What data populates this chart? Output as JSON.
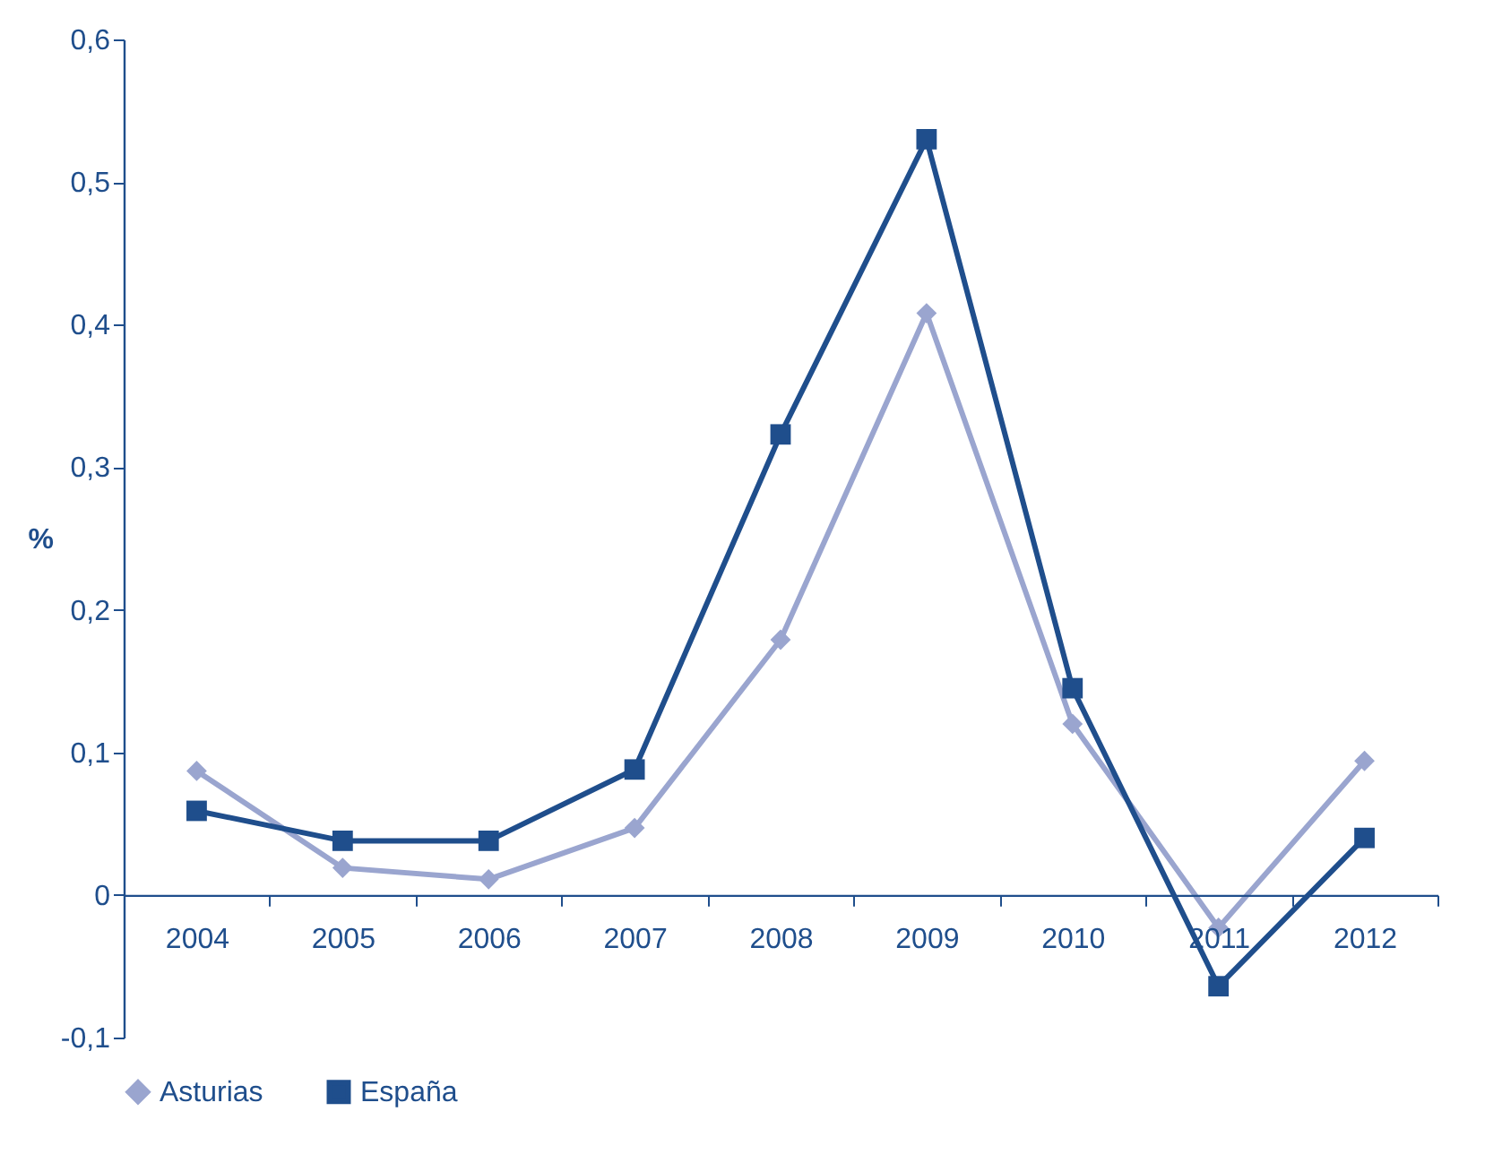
{
  "chart_data": {
    "type": "line",
    "ylabel": "%",
    "categories": [
      "2004",
      "2005",
      "2006",
      "2007",
      "2008",
      "2009",
      "2010",
      "2011",
      "2012"
    ],
    "series": [
      {
        "name": "Asturias",
        "color": "#9aa5cf",
        "marker": "diamond",
        "values": [
          0.087,
          0.019,
          0.011,
          0.047,
          0.179,
          0.408,
          0.12,
          -0.023,
          0.094
        ]
      },
      {
        "name": "España",
        "color": "#1f4e8c",
        "marker": "square",
        "values": [
          0.059,
          0.038,
          0.038,
          0.088,
          0.323,
          0.53,
          0.145,
          -0.064,
          0.04
        ]
      }
    ],
    "ylim": [
      -0.1,
      0.6
    ],
    "yticks": [
      {
        "value": -0.1,
        "label": "-0,1"
      },
      {
        "value": 0,
        "label": "0"
      },
      {
        "value": 0.1,
        "label": "0,1"
      },
      {
        "value": 0.2,
        "label": "0,2"
      },
      {
        "value": 0.3,
        "label": "0,3"
      },
      {
        "value": 0.4,
        "label": "0,4"
      },
      {
        "value": 0.5,
        "label": "0,5"
      },
      {
        "value": 0.6,
        "label": "0,6"
      }
    ],
    "grid": false,
    "legend": "bottom",
    "line_style": "solid"
  }
}
